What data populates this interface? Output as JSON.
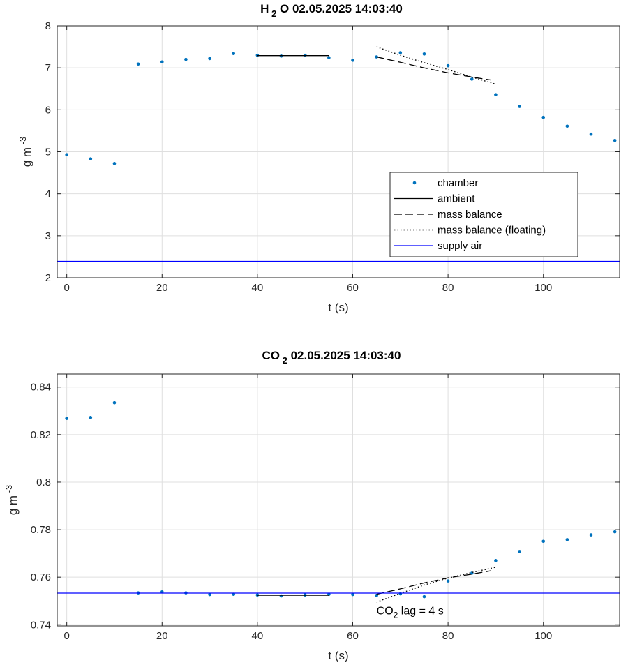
{
  "colors": {
    "chamber": "#0072BD",
    "supply": "#0000FF",
    "line": "#000000",
    "grid": "#DFDFDF",
    "axis": "#262626"
  },
  "chart_data": [
    {
      "type": "scatter",
      "title": {
        "species_main": "H",
        "species_sub": "2",
        "species_tail": "O",
        "timestamp": "02.05.2025 14:03:40"
      },
      "xlabel": "t (s)",
      "ylabel": {
        "main": "g m",
        "sup": "-3"
      },
      "xlim": [
        -2,
        116
      ],
      "ylim": [
        2,
        8
      ],
      "xticks": [
        0,
        20,
        40,
        60,
        80,
        100
      ],
      "yticks": [
        2,
        3,
        4,
        5,
        6,
        7,
        8
      ],
      "ytick_labels": [
        "2",
        "3",
        "4",
        "5",
        "6",
        "7",
        "8"
      ],
      "grid": true,
      "legend_position": "lower-right",
      "series": [
        {
          "name": "chamber",
          "style": "points",
          "x": [
            0,
            5,
            10,
            15,
            20,
            25,
            30,
            35,
            40,
            45,
            50,
            55,
            60,
            65,
            70,
            75,
            80,
            85,
            90,
            95,
            100,
            105,
            110,
            115
          ],
          "y": [
            4.93,
            4.83,
            4.72,
            7.09,
            7.14,
            7.2,
            7.22,
            7.34,
            7.3,
            7.28,
            7.3,
            7.24,
            7.18,
            7.26,
            7.36,
            7.33,
            7.05,
            6.73,
            6.36,
            6.08,
            5.82,
            5.61,
            5.42,
            5.27
          ]
        },
        {
          "name": "ambient",
          "style": "solid",
          "x": [
            40,
            55
          ],
          "y": [
            7.29,
            7.29
          ]
        },
        {
          "name": "mass balance",
          "style": "dashed",
          "x": [
            65,
            70,
            75,
            80,
            85,
            89
          ],
          "y": [
            7.26,
            7.13,
            7.0,
            6.88,
            6.78,
            6.71
          ]
        },
        {
          "name": "mass balance (floating)",
          "style": "dotted",
          "x": [
            65,
            70,
            75,
            80,
            85,
            90
          ],
          "y": [
            7.5,
            7.3,
            7.12,
            6.96,
            6.78,
            6.61
          ]
        },
        {
          "name": "supply air",
          "style": "supply",
          "x": [
            -2,
            116
          ],
          "y": [
            2.39,
            2.39
          ]
        }
      ]
    },
    {
      "type": "scatter",
      "title": {
        "species_main": "CO",
        "species_sub": "2",
        "species_tail": "",
        "timestamp": "02.05.2025 14:03:40"
      },
      "xlabel": "t (s)",
      "ylabel": {
        "main": "g m",
        "sup": "-3"
      },
      "xlim": [
        -2,
        116
      ],
      "ylim": [
        0.7395,
        0.8455
      ],
      "xticks": [
        0,
        20,
        40,
        60,
        80,
        100
      ],
      "yticks": [
        0.74,
        0.76,
        0.78,
        0.8,
        0.82,
        0.84
      ],
      "ytick_labels": [
        "0.74",
        "0.76",
        "0.78",
        "0.8",
        "0.82",
        "0.84"
      ],
      "grid": true,
      "annotation": {
        "main": "CO",
        "sub": "2",
        "tail": " lag = 4 s",
        "x": 65,
        "y": 0.7443
      },
      "series": [
        {
          "name": "chamber",
          "style": "points",
          "x": [
            0,
            5,
            10,
            15,
            20,
            25,
            30,
            35,
            40,
            45,
            50,
            55,
            60,
            65,
            70,
            75,
            80,
            85,
            90,
            95,
            100,
            105,
            110,
            115
          ],
          "y": [
            0.8268,
            0.8272,
            0.8334,
            0.7534,
            0.7538,
            0.7534,
            0.7527,
            0.7528,
            0.7525,
            0.7521,
            0.7525,
            0.7528,
            0.7527,
            0.7523,
            0.753,
            0.7518,
            0.7584,
            0.7617,
            0.767,
            0.7708,
            0.7751,
            0.7758,
            0.7778,
            0.7791
          ]
        },
        {
          "name": "ambient",
          "style": "solid",
          "x": [
            40,
            55
          ],
          "y": [
            0.7524,
            0.7524
          ]
        },
        {
          "name": "mass balance",
          "style": "dashed",
          "x": [
            65,
            70,
            75,
            80,
            85,
            89
          ],
          "y": [
            0.7528,
            0.7551,
            0.7576,
            0.7597,
            0.7613,
            0.7627
          ]
        },
        {
          "name": "mass balance (floating)",
          "style": "dotted",
          "x": [
            65,
            70,
            75,
            80,
            85,
            90
          ],
          "y": [
            0.7495,
            0.7532,
            0.7567,
            0.7596,
            0.762,
            0.7642
          ]
        },
        {
          "name": "supply air",
          "style": "supply",
          "x": [
            -2,
            116
          ],
          "y": [
            0.7533,
            0.7533
          ]
        }
      ]
    }
  ]
}
